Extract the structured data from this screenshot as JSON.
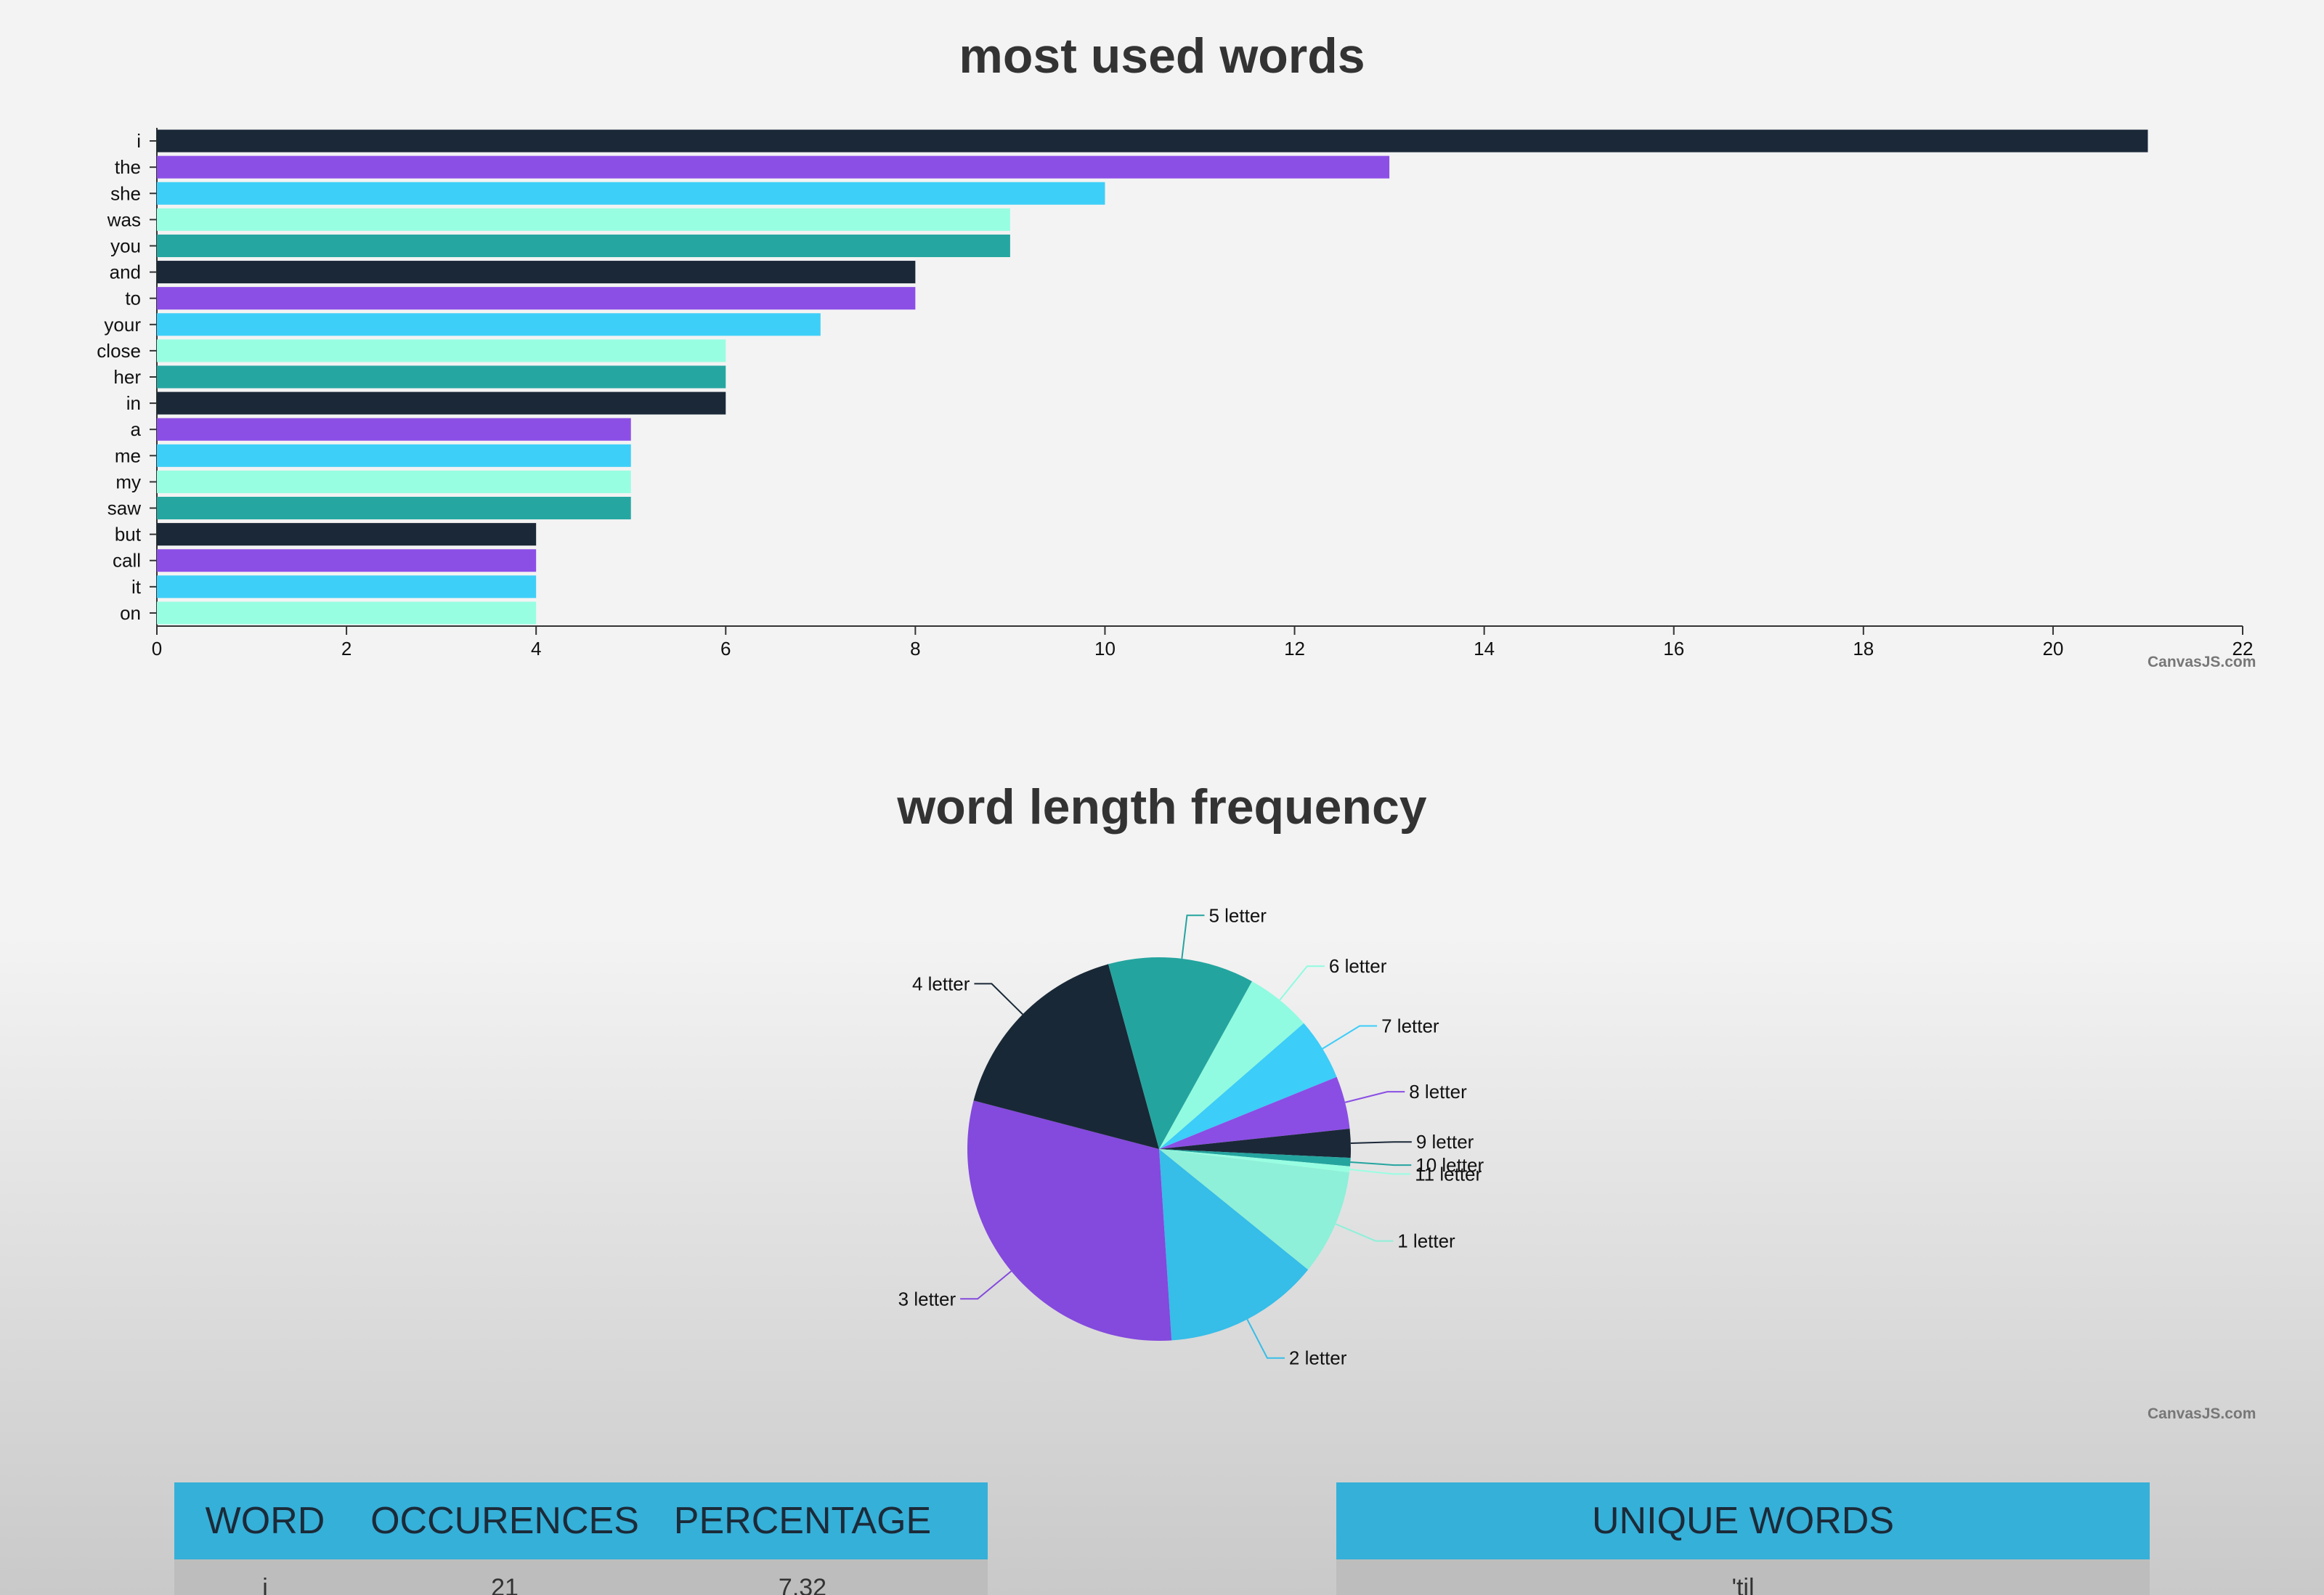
{
  "chart_data": [
    {
      "type": "bar",
      "orientation": "horizontal",
      "title": "most used words",
      "categories": [
        "i",
        "the",
        "she",
        "was",
        "you",
        "and",
        "to",
        "your",
        "close",
        "her",
        "in",
        "a",
        "me",
        "my",
        "saw",
        "but",
        "call",
        "it",
        "on"
      ],
      "values": [
        21,
        13,
        10,
        9,
        9,
        8,
        8,
        7,
        6,
        6,
        6,
        5,
        5,
        5,
        5,
        4,
        4,
        4,
        4
      ],
      "x_ticks": [
        "0",
        "2",
        "4",
        "6",
        "8",
        "10",
        "12",
        "14",
        "16",
        "18",
        "20",
        "22"
      ],
      "xlim": [
        0,
        22
      ],
      "colors": [
        "#1b2838",
        "#8c4fe6",
        "#3ecff8",
        "#98fee2",
        "#26a6a1"
      ],
      "credit": "CanvasJS.com"
    },
    {
      "type": "pie",
      "title": "word length frequency",
      "slices": [
        {
          "label": "1 letter",
          "value": 8.8,
          "color": "#8ef0d8"
        },
        {
          "label": "2 letter",
          "value": 13.0,
          "color": "#36bde8"
        },
        {
          "label": "3 letter",
          "value": 29.8,
          "color": "#8449dd"
        },
        {
          "label": "4 letter",
          "value": 16.5,
          "color": "#192836"
        },
        {
          "label": "5 letter",
          "value": 12.2,
          "color": "#24a49f"
        },
        {
          "label": "6 letter",
          "value": 5.5,
          "color": "#90fbe0"
        },
        {
          "label": "7 letter",
          "value": 5.2,
          "color": "#3ccdf8"
        },
        {
          "label": "8 letter",
          "value": 4.4,
          "color": "#8a4ee4"
        },
        {
          "label": "9 letter",
          "value": 2.4,
          "color": "#1b2838"
        },
        {
          "label": "10 letter",
          "value": 0.7,
          "color": "#24a49f"
        },
        {
          "label": "11 letter",
          "value": 0.5,
          "color": "#98fee2"
        }
      ],
      "credit": "CanvasJS.com"
    }
  ],
  "words_table": {
    "headers": [
      "WORD",
      "OCCURENCES",
      "PERCENTAGE"
    ],
    "rows": [
      [
        "i",
        "21",
        "7.32"
      ]
    ]
  },
  "unique_table": {
    "header": "UNIQUE WORDS",
    "rows": [
      "'til"
    ]
  },
  "colors": {
    "table_header": "#35b0d9",
    "table_body": "#bdbdbd",
    "title": "#333333"
  }
}
